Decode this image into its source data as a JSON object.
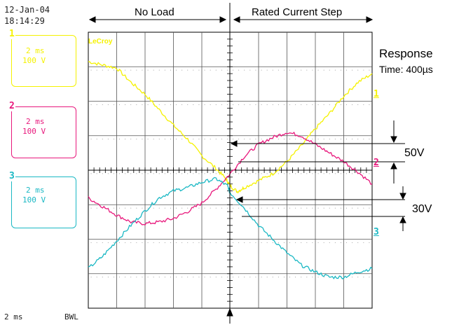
{
  "timestamp": {
    "date": "12-Jan-04",
    "time": "18:14:29"
  },
  "channels": [
    {
      "number": "1",
      "timebase": "2 ms",
      "volts": "100 V",
      "color": "#f5f200"
    },
    {
      "number": "2",
      "timebase": "2 ms",
      "volts": "100 V",
      "color": "#e8187c"
    },
    {
      "number": "3",
      "timebase": "2 ms",
      "volts": "100 V",
      "color": "#1ab8c4"
    }
  ],
  "brand": "LeCroy",
  "footer": {
    "timebase": "2 ms",
    "bwl": "BWL"
  },
  "annotations": {
    "no_load": "No Load",
    "rated_step": "Rated Current Step",
    "response_line1": "Response",
    "response_line2": "Time: 400µs",
    "amp_50v": "50V",
    "amp_30v": "30V"
  },
  "trace_markers": [
    "1",
    "2",
    "3"
  ],
  "chart_data": {
    "type": "line",
    "title": "",
    "xlabel": "",
    "ylabel": "",
    "x_unit": "ms",
    "xlim": [
      -10,
      10
    ],
    "grid": true,
    "series": [
      {
        "name": "1",
        "color": "#f5f200",
        "x": [
          -10,
          -9,
          -8,
          -7,
          -6,
          -5,
          -4,
          -3,
          -2,
          -1,
          -0.3,
          0,
          0.5,
          1,
          2,
          3,
          4,
          5,
          6,
          7,
          8,
          9,
          10
        ],
        "y": [
          315,
          305,
          296,
          255,
          220,
          175,
          130,
          90,
          42,
          5,
          -25,
          -45,
          -62,
          -50,
          -30,
          -10,
          25,
          70,
          120,
          165,
          215,
          255,
          280
        ]
      },
      {
        "name": "2",
        "color": "#e8187c",
        "x": [
          -10,
          -9,
          -8,
          -7,
          -6,
          -5,
          -4,
          -3,
          -2,
          -1,
          0,
          1,
          2,
          3,
          4,
          5,
          6,
          7,
          8,
          9,
          10
        ],
        "y": [
          -80,
          -105,
          -130,
          -150,
          -155,
          -150,
          -140,
          -120,
          -95,
          -55,
          -10,
          40,
          75,
          95,
          110,
          100,
          75,
          50,
          25,
          -5,
          -40
        ]
      },
      {
        "name": "3",
        "color": "#1ab8c4",
        "x": [
          -10,
          -9,
          -8,
          -7,
          -6,
          -5,
          -4,
          -3,
          -2,
          -1,
          -0.2,
          0,
          1,
          2,
          3,
          4,
          5,
          6,
          7,
          8,
          9,
          10
        ],
        "y": [
          -285,
          -250,
          -205,
          -160,
          -118,
          -80,
          -60,
          -50,
          -35,
          -25,
          -45,
          -65,
          -110,
          -160,
          -200,
          -240,
          -275,
          -295,
          -310,
          -310,
          -295,
          -285
        ]
      }
    ]
  }
}
